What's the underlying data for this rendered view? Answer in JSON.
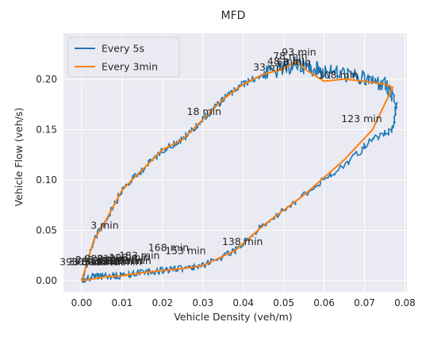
{
  "chart_data": {
    "type": "line",
    "title": "MFD",
    "xlabel": "Vehicle Density (veh/m)",
    "ylabel": "Vehicle Flow (veh/s)",
    "xlim": [
      -0.0045,
      0.0805
    ],
    "ylim": [
      -0.011,
      0.2455
    ],
    "xticks": [
      0.0,
      0.01,
      0.02,
      0.03,
      0.04,
      0.05,
      0.06,
      0.07,
      0.08
    ],
    "xtick_labels": [
      "0.00",
      "0.01",
      "0.02",
      "0.03",
      "0.04",
      "0.05",
      "0.06",
      "0.07",
      "0.08"
    ],
    "yticks": [
      0.0,
      0.05,
      0.1,
      0.15,
      0.2
    ],
    "ytick_labels": [
      "0.00",
      "0.05",
      "0.10",
      "0.15",
      "0.20"
    ],
    "grid": true,
    "legend": {
      "position": "top-left"
    },
    "colors": {
      "background": "#eaeaf2",
      "grid": "#ffffff",
      "every5s": "#1f77b4",
      "every3min": "#ff7f0e"
    },
    "series": [
      {
        "name": "Every 5s",
        "color": "#1f77b4",
        "noisy": true,
        "x": [
          0.0,
          0.003,
          0.006,
          0.01,
          0.015,
          0.02,
          0.025,
          0.03,
          0.035,
          0.04,
          0.045,
          0.05,
          0.053,
          0.056,
          0.06,
          0.065,
          0.07,
          0.075,
          0.078,
          0.077,
          0.072,
          0.065,
          0.055,
          0.045,
          0.038,
          0.03,
          0.025,
          0.02,
          0.015,
          0.01,
          0.006,
          0.003,
          0.0
        ],
        "y": [
          0.0,
          0.04,
          0.06,
          0.09,
          0.11,
          0.13,
          0.14,
          0.16,
          0.18,
          0.195,
          0.205,
          0.21,
          0.215,
          0.212,
          0.208,
          0.205,
          0.2,
          0.195,
          0.175,
          0.15,
          0.14,
          0.115,
          0.085,
          0.055,
          0.03,
          0.015,
          0.012,
          0.01,
          0.008,
          0.005,
          0.005,
          0.004,
          0.0
        ]
      },
      {
        "name": "Every 3min",
        "color": "#ff7f0e",
        "noisy": false,
        "x": [
          0.0,
          0.003,
          0.006,
          0.01,
          0.015,
          0.02,
          0.025,
          0.03,
          0.035,
          0.04,
          0.045,
          0.05,
          0.053,
          0.056,
          0.06,
          0.065,
          0.07,
          0.075,
          0.077,
          0.072,
          0.065,
          0.055,
          0.045,
          0.038,
          0.03,
          0.025,
          0.02,
          0.015,
          0.01,
          0.006,
          0.003,
          0.0
        ],
        "y": [
          0.0,
          0.04,
          0.06,
          0.09,
          0.11,
          0.13,
          0.14,
          0.16,
          0.18,
          0.195,
          0.205,
          0.21,
          0.218,
          0.208,
          0.198,
          0.2,
          0.198,
          0.195,
          0.192,
          0.15,
          0.12,
          0.085,
          0.055,
          0.03,
          0.015,
          0.012,
          0.01,
          0.008,
          0.005,
          0.004,
          0.002,
          0.0
        ]
      }
    ],
    "annotations": [
      {
        "text": "93 min",
        "x": 0.0538,
        "y": 0.2235
      },
      {
        "text": "78 min",
        "x": 0.0516,
        "y": 0.2195
      },
      {
        "text": "48 min",
        "x": 0.0502,
        "y": 0.2145
      },
      {
        "text": "63 min",
        "x": 0.0525,
        "y": 0.2135
      },
      {
        "text": "33 min",
        "x": 0.0467,
        "y": 0.2085
      },
      {
        "text": "108 min",
        "x": 0.0635,
        "y": 0.2005
      },
      {
        "text": "18 min",
        "x": 0.0303,
        "y": 0.1645
      },
      {
        "text": "123 min",
        "x": 0.0693,
        "y": 0.1575
      },
      {
        "text": "3 min",
        "x": 0.0057,
        "y": 0.0515
      },
      {
        "text": "138 min",
        "x": 0.0398,
        "y": 0.0355
      },
      {
        "text": "168 min",
        "x": 0.0215,
        "y": 0.0295
      },
      {
        "text": "153 min",
        "x": 0.0257,
        "y": 0.0265
      },
      {
        "text": "183 min",
        "x": 0.0143,
        "y": 0.0215
      },
      {
        "text": "198 min",
        "x": 0.0118,
        "y": 0.0195
      },
      {
        "text": "213 min",
        "x": 0.0088,
        "y": 0.0185
      },
      {
        "text": "228 min",
        "x": 0.0058,
        "y": 0.0185
      },
      {
        "text": "243 min",
        "x": 0.0035,
        "y": 0.0175
      },
      {
        "text": "258 min",
        "x": 0.0102,
        "y": 0.0165
      },
      {
        "text": "288 min",
        "x": 0.0078,
        "y": 0.0165
      },
      {
        "text": "303 min",
        "x": 0.0122,
        "y": 0.0165
      },
      {
        "text": "318 min",
        "x": 0.0055,
        "y": 0.0155
      },
      {
        "text": "333 min",
        "x": 0.0068,
        "y": 0.0155
      },
      {
        "text": "348 min",
        "x": 0.0098,
        "y": 0.0155
      },
      {
        "text": "363 min",
        "x": 0.0025,
        "y": 0.0155
      },
      {
        "text": "378 min",
        "x": 0.0018,
        "y": 0.0155
      },
      {
        "text": "393 min",
        "x": -0.0004,
        "y": 0.0155
      }
    ]
  }
}
